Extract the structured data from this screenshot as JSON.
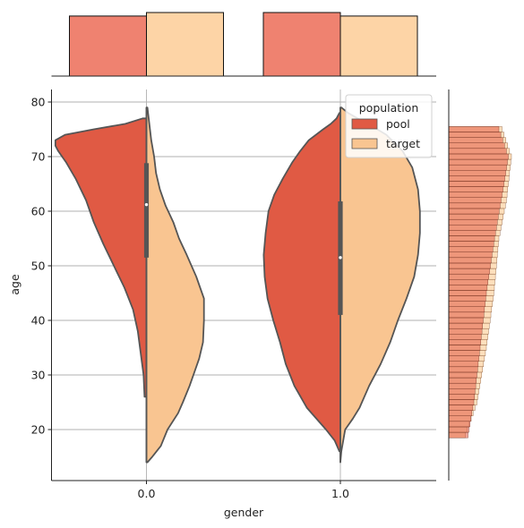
{
  "colors": {
    "pool": "#e05a44",
    "target": "#f9c591",
    "pool_bar": "#ef8270",
    "target_bar": "#fdd4a6",
    "violin_edge": "#555555",
    "grid": "#b0b0b0"
  },
  "chart_data": {
    "type": "violin",
    "xlabel": "gender",
    "ylabel": "age",
    "ylim": [
      11,
      82.5
    ],
    "y_ticks": [
      20,
      30,
      40,
      50,
      60,
      70,
      80
    ],
    "categories": [
      "0.0",
      "1.0"
    ],
    "legend": {
      "title": "population",
      "entries": [
        "pool",
        "target"
      ],
      "placement": "top-right"
    },
    "grid": true,
    "violins": [
      {
        "category": "0.0",
        "pool": {
          "min": 26,
          "max": 77,
          "quartiles": [
            51.5,
            61.2,
            68.8
          ],
          "profile": [
            [
              26,
              0.02
            ],
            [
              30,
              0.03
            ],
            [
              34,
              0.06
            ],
            [
              38,
              0.09
            ],
            [
              42,
              0.14
            ],
            [
              46,
              0.23
            ],
            [
              50,
              0.34
            ],
            [
              54,
              0.45
            ],
            [
              58,
              0.55
            ],
            [
              62,
              0.63
            ],
            [
              66,
              0.74
            ],
            [
              69,
              0.84
            ],
            [
              71,
              0.92
            ],
            [
              72,
              0.95
            ],
            [
              73,
              0.95
            ],
            [
              74,
              0.85
            ],
            [
              75,
              0.55
            ],
            [
              76,
              0.22
            ],
            [
              77,
              0.04
            ]
          ]
        },
        "target": {
          "min": 14,
          "max": 79,
          "quartiles": [
            51.5,
            61.2,
            68.8
          ],
          "profile": [
            [
              14,
              0.01
            ],
            [
              15,
              0.06
            ],
            [
              17,
              0.15
            ],
            [
              20,
              0.22
            ],
            [
              23,
              0.33
            ],
            [
              25,
              0.38
            ],
            [
              28,
              0.45
            ],
            [
              30,
              0.49
            ],
            [
              33,
              0.55
            ],
            [
              36,
              0.59
            ],
            [
              40,
              0.6
            ],
            [
              44,
              0.6
            ],
            [
              48,
              0.52
            ],
            [
              52,
              0.42
            ],
            [
              55,
              0.34
            ],
            [
              58,
              0.28
            ],
            [
              61,
              0.2
            ],
            [
              64,
              0.14
            ],
            [
              67,
              0.1
            ],
            [
              70,
              0.08
            ],
            [
              73,
              0.05
            ],
            [
              76,
              0.03
            ],
            [
              79,
              0.01
            ]
          ]
        }
      },
      {
        "category": "1.0",
        "pool": {
          "min": 16,
          "max": 78,
          "quartiles": [
            41,
            51.5,
            61.8
          ],
          "profile": [
            [
              16,
              0.01
            ],
            [
              18,
              0.06
            ],
            [
              20,
              0.15
            ],
            [
              24,
              0.35
            ],
            [
              28,
              0.48
            ],
            [
              32,
              0.57
            ],
            [
              36,
              0.63
            ],
            [
              40,
              0.7
            ],
            [
              44,
              0.76
            ],
            [
              48,
              0.79
            ],
            [
              52,
              0.8
            ],
            [
              56,
              0.78
            ],
            [
              60,
              0.75
            ],
            [
              63,
              0.69
            ],
            [
              66,
              0.6
            ],
            [
              69,
              0.5
            ],
            [
              71,
              0.42
            ],
            [
              73,
              0.33
            ],
            [
              75,
              0.18
            ],
            [
              76,
              0.1
            ],
            [
              77,
              0.04
            ],
            [
              78,
              0.01
            ]
          ]
        },
        "target": {
          "min": 14,
          "max": 79,
          "quartiles": [
            41,
            51.5,
            61.8
          ],
          "profile": [
            [
              14,
              0.0
            ],
            [
              16,
              0.01
            ],
            [
              18,
              0.03
            ],
            [
              20,
              0.05
            ],
            [
              22,
              0.13
            ],
            [
              24,
              0.2
            ],
            [
              28,
              0.3
            ],
            [
              32,
              0.42
            ],
            [
              36,
              0.52
            ],
            [
              40,
              0.6
            ],
            [
              44,
              0.69
            ],
            [
              48,
              0.77
            ],
            [
              52,
              0.81
            ],
            [
              56,
              0.83
            ],
            [
              60,
              0.83
            ],
            [
              64,
              0.81
            ],
            [
              68,
              0.75
            ],
            [
              71,
              0.65
            ],
            [
              74,
              0.48
            ],
            [
              76,
              0.29
            ],
            [
              77,
              0.18
            ],
            [
              78,
              0.08
            ],
            [
              79,
              0.01
            ]
          ]
        }
      }
    ],
    "top_marginal": {
      "categories": [
        "0.0",
        "1.0"
      ],
      "series": [
        {
          "name": "pool",
          "values": [
            0.945,
            1.0
          ]
        },
        {
          "name": "target",
          "values": [
            1.0,
            0.945
          ]
        }
      ]
    },
    "right_marginal": {
      "bin_range": [
        18.5,
        75
      ],
      "pool_profile": [
        [
          18.5,
          0.3
        ],
        [
          25,
          0.4
        ],
        [
          35,
          0.5
        ],
        [
          45,
          0.6
        ],
        [
          55,
          0.73
        ],
        [
          65,
          0.88
        ],
        [
          70,
          0.95
        ],
        [
          75,
          0.8
        ]
      ],
      "target_profile": [
        [
          18.5,
          0.25
        ],
        [
          25,
          0.45
        ],
        [
          35,
          0.6
        ],
        [
          45,
          0.72
        ],
        [
          55,
          0.8
        ],
        [
          62,
          0.92
        ],
        [
          70,
          1.0
        ],
        [
          75,
          0.85
        ]
      ]
    }
  }
}
